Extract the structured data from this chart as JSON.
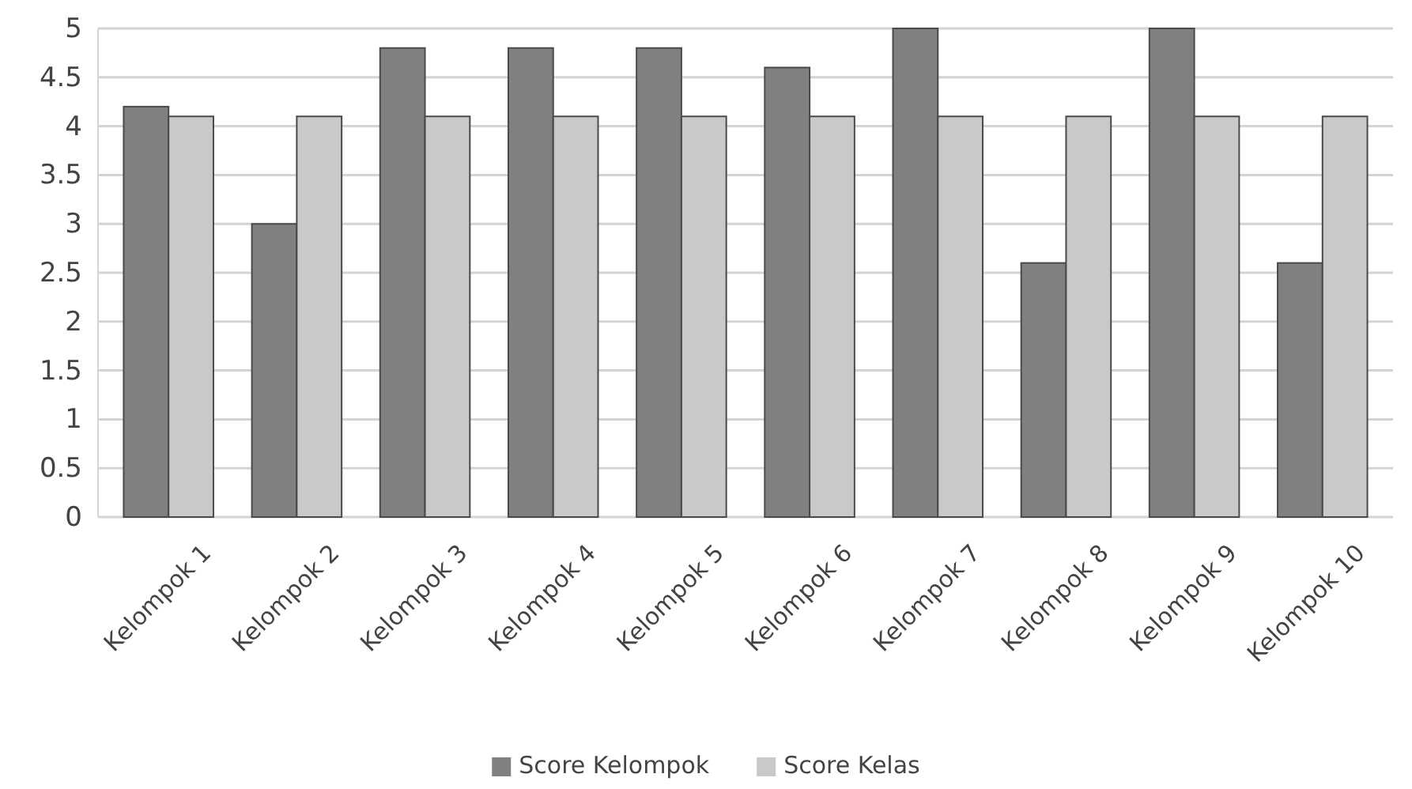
{
  "chart_data": {
    "type": "bar",
    "categories": [
      "Kelompok 1",
      "Kelompok 2",
      "Kelompok 3",
      "Kelompok 4",
      "Kelompok 5",
      "Kelompok 6",
      "Kelompok 7",
      "Kelompok 8",
      "Kelompok 9",
      "Kelompok 10"
    ],
    "series": [
      {
        "name": "Score Kelompok",
        "color": "#808080",
        "values": [
          4.2,
          3,
          4.8,
          4.8,
          4.8,
          4.6,
          5,
          2.6,
          5,
          2.6
        ]
      },
      {
        "name": "Score Kelas",
        "color": "#c8c9cb",
        "values": [
          4.1,
          4.1,
          4.1,
          4.1,
          4.1,
          4.1,
          4.1,
          4.1,
          4.1,
          4.1
        ]
      }
    ],
    "ylim": [
      0,
      5
    ],
    "yticks": [
      0,
      0.5,
      1,
      1.5,
      2,
      2.5,
      3,
      3.5,
      4,
      4.5,
      5
    ],
    "grid": "y",
    "legend": "bottom"
  }
}
